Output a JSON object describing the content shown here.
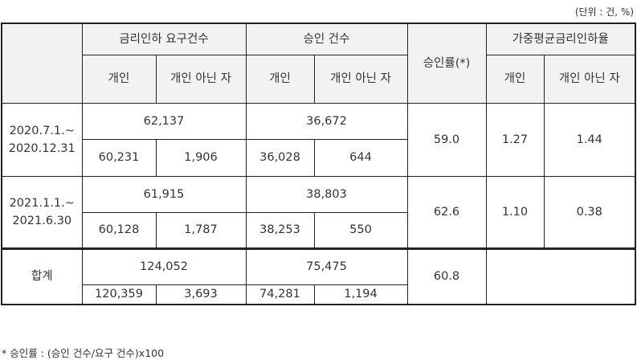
{
  "unit_note": "(단위 : 건, %)",
  "headers": {
    "request": "금리인하 요구건수",
    "approved": "승인 건수",
    "rate": "승인률(*)",
    "avg_cut": "가중평균금리인하율",
    "individual": "개인",
    "non_individual": "개인 아닌 자"
  },
  "rows": [
    {
      "period": "2020.7.1.~2020.12.31",
      "req_total": "62,137",
      "appr_total": "36,672",
      "req_ind": "60,231",
      "req_non": "1,906",
      "appr_ind": "36,028",
      "appr_non": "644",
      "rate": "59.0",
      "cut_ind": "1.27",
      "cut_non": "1.44"
    },
    {
      "period": "2021.1.1.~2021.6.30",
      "req_total": "61,915",
      "appr_total": "38,803",
      "req_ind": "60,128",
      "req_non": "1,787",
      "appr_ind": "38,253",
      "appr_non": "550",
      "rate": "62.6",
      "cut_ind": "1.10",
      "cut_non": "0.38"
    },
    {
      "period": "합계",
      "req_total": "124,052",
      "appr_total": "75,475",
      "req_ind": "120,359",
      "req_non": "3,693",
      "appr_ind": "74,281",
      "appr_non": "1,194",
      "rate": "60.8",
      "cut_ind": "",
      "cut_non": ""
    }
  ],
  "footnote": "* 승인률 : (승인 건수/요구 건수)x100"
}
